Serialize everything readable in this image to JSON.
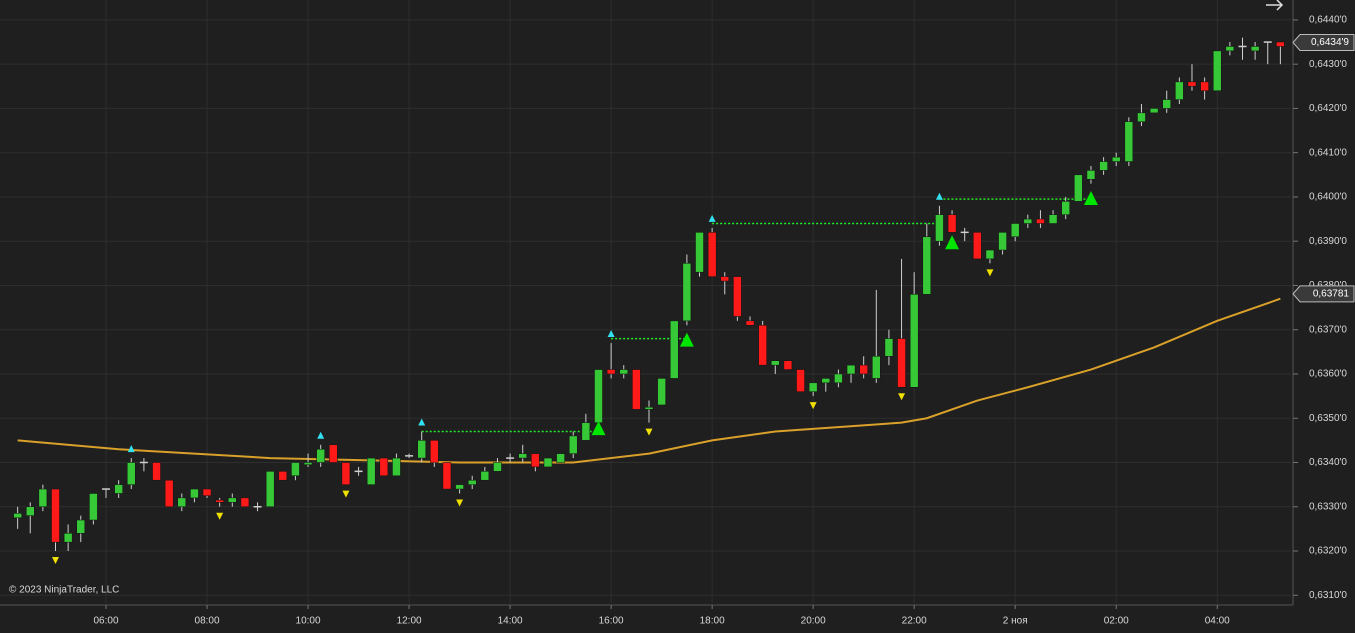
{
  "chart_data": {
    "type": "candlestick",
    "copyright": "© 2023 NinjaTrader, LLC",
    "up_color": "#37c837",
    "down_color": "#ff1a1a",
    "wick_color": "#cfcfcf",
    "open": [
      0.63275,
      0.6328,
      0.633,
      0.6334,
      0.6322,
      0.6324,
      0.6327,
      0.6334,
      0.6333,
      0.6335,
      0.634,
      0.634,
      0.6336,
      0.633,
      0.6332,
      0.6334,
      0.63315,
      0.6331,
      0.6332,
      0.633,
      0.633,
      0.6338,
      0.6337,
      0.63395,
      0.634,
      0.6344,
      0.634,
      0.6338,
      0.6335,
      0.6341,
      0.6337,
      0.63415,
      0.6341,
      0.6345,
      0.634,
      0.6334,
      0.6335,
      0.6336,
      0.6338,
      0.6341,
      0.6341,
      0.6342,
      0.6339,
      0.634,
      0.6342,
      0.6345,
      0.6349,
      0.6361,
      0.636,
      0.6361,
      0.6352,
      0.6353,
      0.6359,
      0.6372,
      0.6383,
      0.6392,
      0.6382,
      0.6382,
      0.6372,
      0.6371,
      0.6362,
      0.6363,
      0.6361,
      0.6356,
      0.6358,
      0.6358,
      0.636,
      0.6362,
      0.6359,
      0.6364,
      0.6368,
      0.6357,
      0.6378,
      0.639,
      0.6396,
      0.6392,
      0.6392,
      0.6386,
      0.6388,
      0.6391,
      0.6394,
      0.6395,
      0.6394,
      0.6396,
      0.6399,
      0.6404,
      0.6406,
      0.6408,
      0.6408,
      0.6417,
      0.6419,
      0.642,
      0.6422,
      0.6426,
      0.6426,
      0.6424,
      0.6433,
      0.6434,
      0.6433,
      0.6435,
      0.6435
    ],
    "high": [
      0.633,
      0.6331,
      0.6335,
      0.6334,
      0.6326,
      0.6328,
      0.6333,
      0.6334,
      0.6336,
      0.6341,
      0.6341,
      0.634,
      0.6336,
      0.6333,
      0.6334,
      0.6334,
      0.6332,
      0.6333,
      0.6332,
      0.6331,
      0.6338,
      0.6338,
      0.634,
      0.6342,
      0.6344,
      0.6344,
      0.634,
      0.6339,
      0.6341,
      0.6341,
      0.6342,
      0.6342,
      0.6347,
      0.6345,
      0.634,
      0.6335,
      0.6337,
      0.6339,
      0.6341,
      0.6342,
      0.6344,
      0.6342,
      0.6341,
      0.6342,
      0.6347,
      0.6351,
      0.6361,
      0.6367,
      0.6362,
      0.6361,
      0.6354,
      0.6359,
      0.6372,
      0.6387,
      0.6392,
      0.6393,
      0.6383,
      0.6382,
      0.6373,
      0.6372,
      0.6363,
      0.6363,
      0.6361,
      0.6358,
      0.6359,
      0.6361,
      0.6362,
      0.6364,
      0.6379,
      0.637,
      0.6386,
      0.6383,
      0.6394,
      0.6398,
      0.6397,
      0.6393,
      0.6392,
      0.6388,
      0.6392,
      0.6394,
      0.6396,
      0.6397,
      0.6397,
      0.64,
      0.6405,
      0.6407,
      0.6409,
      0.641,
      0.6418,
      0.6421,
      0.642,
      0.6424,
      0.6427,
      0.643,
      0.6427,
      0.6433,
      0.6435,
      0.6436,
      0.6435,
      0.6435,
      0.6435
    ],
    "low": [
      0.6325,
      0.6324,
      0.6329,
      0.632,
      0.632,
      0.6322,
      0.6326,
      0.6332,
      0.6332,
      0.6334,
      0.6338,
      0.6336,
      0.633,
      0.6329,
      0.6331,
      0.6332,
      0.633,
      0.633,
      0.633,
      0.6329,
      0.633,
      0.6336,
      0.6336,
      0.6339,
      0.6339,
      0.634,
      0.6335,
      0.6337,
      0.6335,
      0.6337,
      0.6337,
      0.6341,
      0.634,
      0.6339,
      0.6334,
      0.6333,
      0.6334,
      0.6336,
      0.6338,
      0.634,
      0.634,
      0.6338,
      0.6339,
      0.634,
      0.6341,
      0.6345,
      0.6349,
      0.6359,
      0.6359,
      0.6352,
      0.6349,
      0.6353,
      0.6359,
      0.6371,
      0.6382,
      0.6382,
      0.6378,
      0.6372,
      0.6371,
      0.6362,
      0.636,
      0.6361,
      0.6356,
      0.6355,
      0.6356,
      0.6357,
      0.6358,
      0.6359,
      0.6358,
      0.6362,
      0.6357,
      0.6357,
      0.6378,
      0.6389,
      0.6392,
      0.639,
      0.6386,
      0.6385,
      0.6387,
      0.639,
      0.6393,
      0.6393,
      0.6394,
      0.6395,
      0.6399,
      0.6403,
      0.6405,
      0.6407,
      0.6407,
      0.6416,
      0.6419,
      0.6419,
      0.6421,
      0.6424,
      0.6422,
      0.6424,
      0.6432,
      0.6431,
      0.6431,
      0.643,
      0.643
    ],
    "close": [
      0.63285,
      0.633,
      0.6334,
      0.6322,
      0.6324,
      0.6327,
      0.6333,
      0.6334,
      0.6335,
      0.634,
      0.634,
      0.6336,
      0.633,
      0.6332,
      0.6334,
      0.63325,
      0.6331,
      0.6332,
      0.633,
      0.633,
      0.6338,
      0.6336,
      0.634,
      0.634,
      0.6343,
      0.634,
      0.6335,
      0.6338,
      0.6341,
      0.6337,
      0.6341,
      0.63415,
      0.6345,
      0.634,
      0.6334,
      0.6335,
      0.6336,
      0.6338,
      0.634,
      0.6341,
      0.6342,
      0.6339,
      0.6341,
      0.6342,
      0.6346,
      0.6349,
      0.6361,
      0.636,
      0.6361,
      0.6352,
      0.63525,
      0.6359,
      0.6372,
      0.6385,
      0.6392,
      0.6382,
      0.6381,
      0.6373,
      0.6371,
      0.6362,
      0.6363,
      0.6361,
      0.6356,
      0.6358,
      0.6359,
      0.636,
      0.6362,
      0.636,
      0.6364,
      0.6368,
      0.6357,
      0.6378,
      0.6391,
      0.6396,
      0.6392,
      0.6392,
      0.6386,
      0.6388,
      0.6392,
      0.6394,
      0.6395,
      0.6394,
      0.6396,
      0.6399,
      0.6405,
      0.6406,
      0.6408,
      0.6409,
      0.6417,
      0.6419,
      0.642,
      0.6422,
      0.6426,
      0.6425,
      0.6424,
      0.6433,
      0.6434,
      0.6434,
      0.6434,
      0.6435,
      0.6434
    ],
    "ma": {
      "color": "#d9a02a",
      "x": [
        0,
        8,
        20,
        35,
        44,
        50,
        55,
        60,
        70,
        72,
        76,
        80,
        85,
        90,
        95,
        100
      ],
      "values": [
        0.6345,
        0.6343,
        0.6341,
        0.634,
        0.634,
        0.6342,
        0.6345,
        0.6347,
        0.6349,
        0.635,
        0.6354,
        0.6357,
        0.6361,
        0.6366,
        0.6372,
        0.6377
      ]
    },
    "up_markers": {
      "color": "#33e0f0",
      "x": [
        9,
        24,
        32,
        47,
        55,
        73
      ]
    },
    "down_markers": {
      "color": "#f0e000",
      "x": [
        3,
        16,
        26,
        35,
        50,
        63,
        70,
        77
      ]
    },
    "entry_markers": {
      "color": "#00e600",
      "x": [
        46,
        53,
        74,
        85
      ],
      "values": [
        0.6348,
        0.6368,
        0.639,
        0.64
      ]
    },
    "levels": {
      "color": "#22ee22",
      "items": [
        {
          "x": [
            32,
            46
          ],
          "value": 0.6347
        },
        {
          "x": [
            47,
            53
          ],
          "value": 0.6368
        },
        {
          "x": [
            55,
            73
          ],
          "value": 0.6394
        },
        {
          "x": [
            73,
            85
          ],
          "value": 0.63995
        }
      ]
    },
    "last_price": {
      "value": 0.64349,
      "label": "0,6434'9"
    },
    "ma_price": {
      "value": 0.63781,
      "label": "0,63781"
    },
    "xlim": [
      -1,
      101
    ],
    "ylim": [
      0.63078,
      0.64445
    ],
    "xticks": [
      {
        "value": 7,
        "label": "06:00"
      },
      {
        "value": 15,
        "label": "08:00"
      },
      {
        "value": 23,
        "label": "10:00"
      },
      {
        "value": 31,
        "label": "12:00"
      },
      {
        "value": 39,
        "label": "14:00"
      },
      {
        "value": 47,
        "label": "16:00"
      },
      {
        "value": 55,
        "label": "18:00"
      },
      {
        "value": 63,
        "label": "20:00"
      },
      {
        "value": 71,
        "label": "22:00"
      },
      {
        "value": 79,
        "label": "2 ноя"
      },
      {
        "value": 87,
        "label": "02:00"
      },
      {
        "value": 95,
        "label": "04:00"
      }
    ],
    "yticks": [
      {
        "value": 0.631,
        "label": "0,6310'0"
      },
      {
        "value": 0.632,
        "label": "0,6320'0"
      },
      {
        "value": 0.633,
        "label": "0,6330'0"
      },
      {
        "value": 0.634,
        "label": "0,6340'0"
      },
      {
        "value": 0.635,
        "label": "0,6350'0"
      },
      {
        "value": 0.636,
        "label": "0,6360'0"
      },
      {
        "value": 0.637,
        "label": "0,6370'0"
      },
      {
        "value": 0.638,
        "label": "0,6380'0"
      },
      {
        "value": 0.639,
        "label": "0,6390'0"
      },
      {
        "value": 0.64,
        "label": "0,6400'0"
      },
      {
        "value": 0.641,
        "label": "0,6410'0"
      },
      {
        "value": 0.642,
        "label": "0,6420'0"
      },
      {
        "value": 0.643,
        "label": "0,6430'0"
      },
      {
        "value": 0.644,
        "label": "0,6440'0"
      }
    ],
    "grid": true
  }
}
